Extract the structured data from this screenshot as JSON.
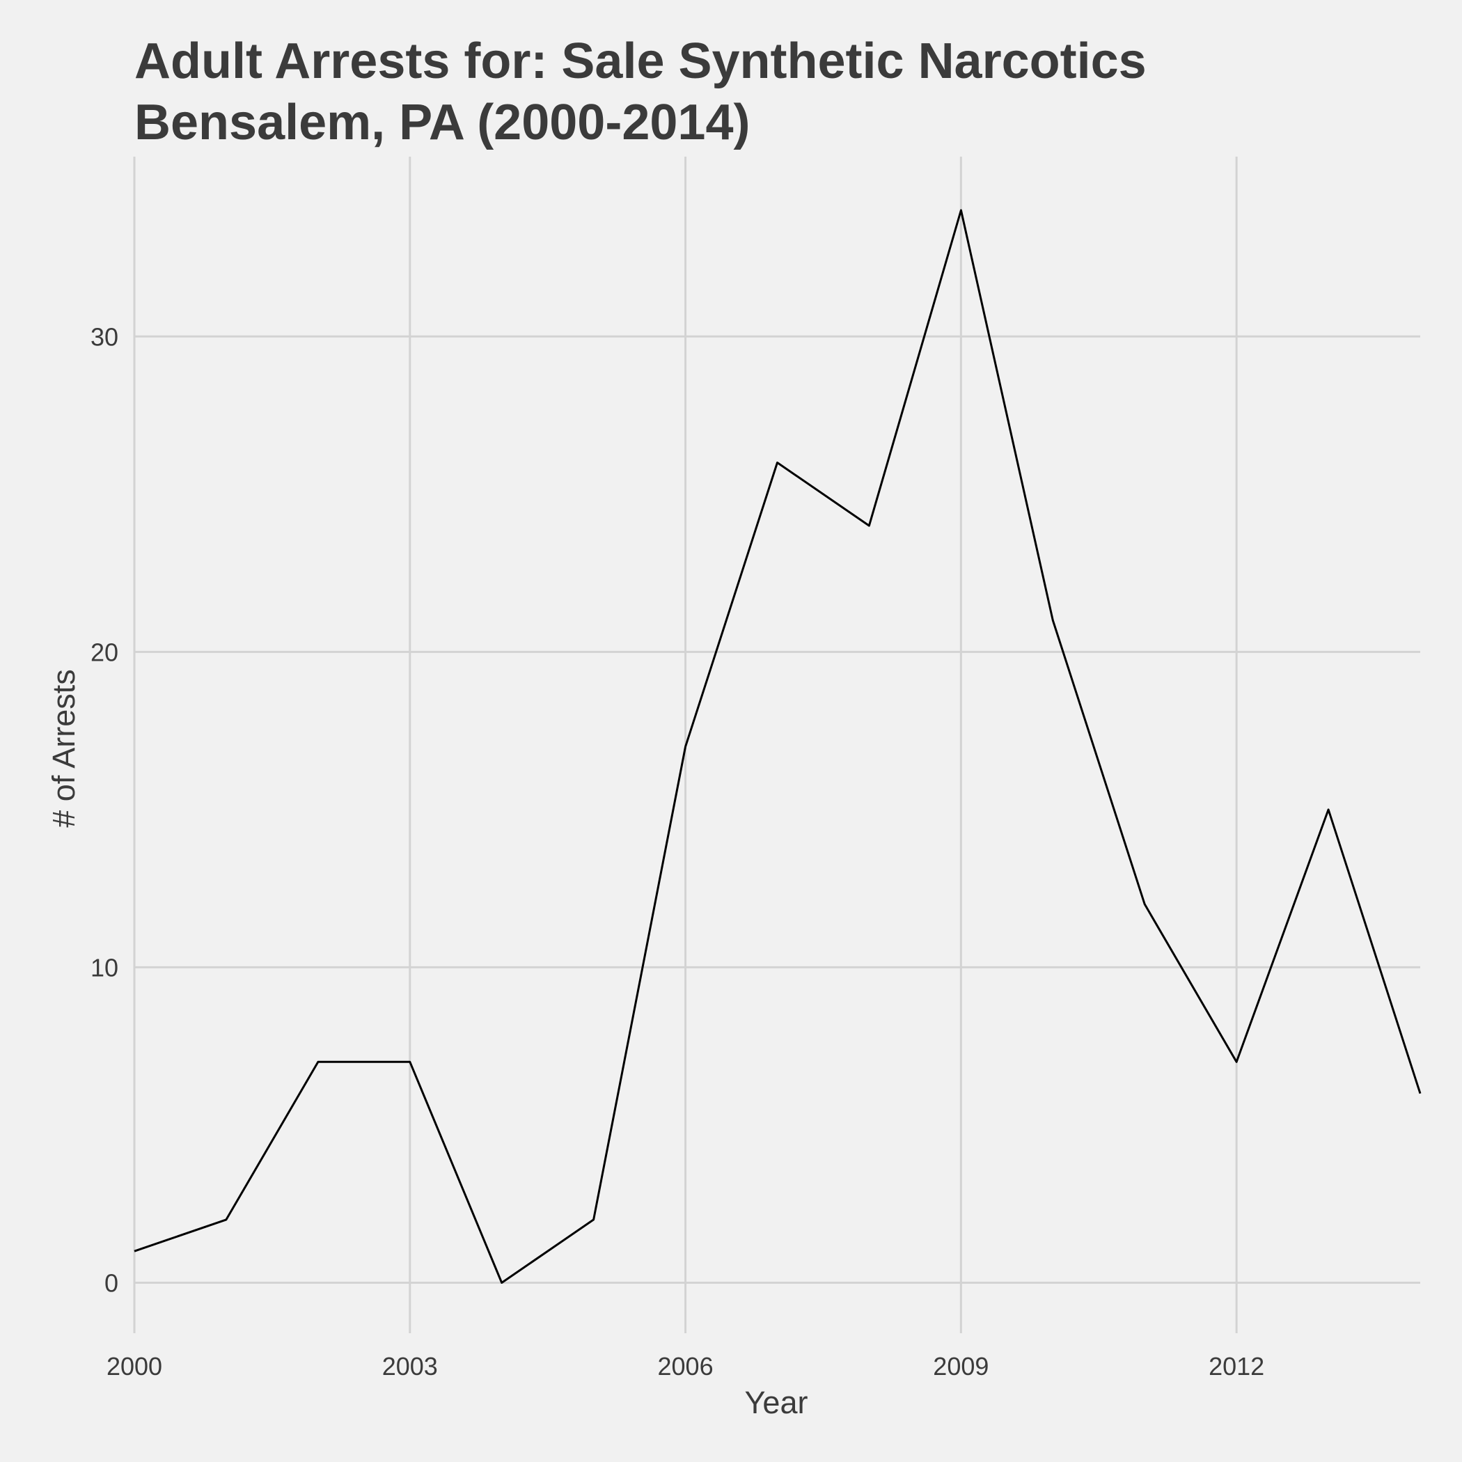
{
  "chart_data": {
    "type": "line",
    "title_lines": [
      "Adult Arrests for: Sale Synthetic Narcotics",
      "Bensalem, PA (2000-2014)"
    ],
    "xlabel": "Year",
    "ylabel": "# of Arrests",
    "x_ticks": [
      2000,
      2003,
      2006,
      2009,
      2012
    ],
    "y_ticks": [
      0,
      10,
      20,
      30
    ],
    "xlim": [
      2000,
      2014
    ],
    "ylim": [
      -1.6,
      35.7
    ],
    "grid": true,
    "colors": {
      "background": "#f1f1f1",
      "grid": "#d3d3d3",
      "line": "#000000",
      "text": "#3b3b3b"
    },
    "series": [
      {
        "x": [
          2000,
          2001,
          2002,
          2003,
          2004,
          2005,
          2006,
          2007,
          2008,
          2009,
          2010,
          2011,
          2012,
          2013,
          2014
        ],
        "values": [
          1,
          2,
          7,
          7,
          0,
          2,
          17,
          26,
          24,
          34,
          21,
          12,
          7,
          15,
          6
        ]
      }
    ]
  }
}
